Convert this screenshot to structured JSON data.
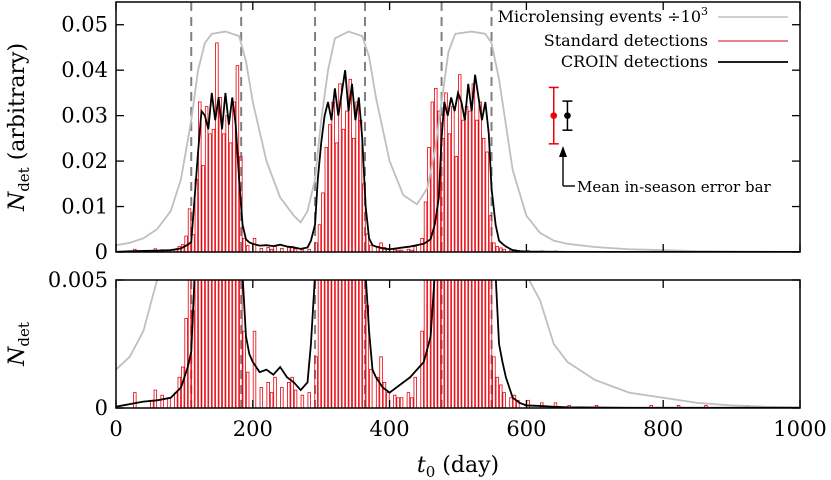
{
  "chart_data": {
    "type": "bar",
    "shared_x": {
      "label": "t",
      "label_sub": "0",
      "label_rest": " (day)",
      "lim": [
        0,
        1000
      ],
      "ticks": [
        0,
        200,
        400,
        600,
        800,
        1000
      ]
    },
    "season_boundaries": [
      110,
      183,
      291,
      364,
      476,
      549
    ],
    "legend": {
      "position": "top-right",
      "entries": [
        {
          "label": "Microlensing events ÷10",
          "sup": "3",
          "series": "events"
        },
        {
          "label": "Standard detections",
          "series": "standard"
        },
        {
          "label": "CROIN detections",
          "series": "croin"
        }
      ]
    },
    "colors": {
      "events": "#bfbfbf",
      "standard": "#e8000b",
      "croin": "#000000",
      "boundary": "#808080"
    },
    "annotation": {
      "text": "Mean in-season error bar",
      "points": [
        {
          "series": "standard",
          "x": 640,
          "y": 0.03,
          "err": 0.0062,
          "color": "#e8000b"
        },
        {
          "series": "croin",
          "x": 660,
          "y": 0.03,
          "err": 0.0032,
          "color": "#000000"
        }
      ]
    },
    "panels": [
      {
        "name": "top",
        "ylabel": "N",
        "ylabel_sub": "det",
        "ylabel_rest": " (arbitrary)",
        "ylim": [
          0,
          0.055
        ],
        "ticks": [
          0,
          0.01,
          0.02,
          0.03,
          0.04,
          0.05
        ],
        "tick_labels": [
          "0",
          "0.01",
          "0.02",
          "0.03",
          "0.04",
          "0.05"
        ]
      },
      {
        "name": "bottom",
        "ylabel": "N",
        "ylabel_sub": "det",
        "ylabel_rest": "",
        "ylim": [
          0,
          0.005
        ],
        "ticks": [
          0,
          0.005
        ],
        "tick_labels": [
          "0",
          "0.005"
        ]
      }
    ],
    "series": [
      {
        "name": "Microlensing events ÷10³",
        "key": "events",
        "type": "line",
        "x": [
          0,
          20,
          40,
          60,
          80,
          95,
          110,
          120,
          130,
          140,
          160,
          180,
          190,
          200,
          220,
          240,
          260,
          270,
          280,
          291,
          300,
          310,
          320,
          340,
          360,
          370,
          380,
          400,
          420,
          440,
          455,
          466,
          476,
          486,
          496,
          520,
          540,
          549,
          560,
          570,
          580,
          600,
          620,
          640,
          660,
          700,
          750,
          800,
          850,
          900,
          950,
          1000
        ],
        "y": [
          0.0015,
          0.002,
          0.003,
          0.005,
          0.009,
          0.016,
          0.029,
          0.04,
          0.046,
          0.048,
          0.0485,
          0.0475,
          0.042,
          0.033,
          0.02,
          0.012,
          0.008,
          0.0065,
          0.009,
          0.016,
          0.029,
          0.04,
          0.047,
          0.0485,
          0.0475,
          0.043,
          0.034,
          0.02,
          0.0125,
          0.0105,
          0.014,
          0.022,
          0.033,
          0.044,
          0.048,
          0.0485,
          0.048,
          0.046,
          0.038,
          0.028,
          0.018,
          0.008,
          0.0042,
          0.0025,
          0.0018,
          0.0011,
          0.0006,
          0.0004,
          0.0002,
          0.0001,
          5e-05,
          2e-05
        ]
      },
      {
        "name": "Standard detections",
        "key": "standard",
        "type": "bar",
        "bin_width": 5,
        "bin_start": [
          25,
          50,
          55,
          65,
          75,
          85,
          90,
          95,
          100,
          105,
          110,
          115,
          120,
          125,
          130,
          135,
          140,
          145,
          150,
          155,
          160,
          165,
          170,
          175,
          180,
          185,
          190,
          200,
          210,
          220,
          225,
          230,
          240,
          250,
          255,
          260,
          270,
          280,
          290,
          295,
          300,
          305,
          310,
          315,
          320,
          325,
          330,
          335,
          340,
          345,
          350,
          355,
          360,
          365,
          370,
          380,
          385,
          390,
          395,
          405,
          410,
          415,
          425,
          430,
          435,
          445,
          450,
          455,
          460,
          465,
          470,
          475,
          480,
          485,
          490,
          495,
          500,
          505,
          510,
          515,
          520,
          525,
          530,
          535,
          540,
          545,
          550,
          555,
          560,
          565,
          575,
          580,
          585,
          600,
          620,
          640,
          660,
          700,
          780,
          820,
          860,
          920
        ],
        "values": [
          0.0006,
          0.0003,
          0.0007,
          0.0005,
          0.0004,
          0.0006,
          0.0012,
          0.0016,
          0.0035,
          0.0095,
          0.0038,
          0.016,
          0.033,
          0.019,
          0.032,
          0.026,
          0.027,
          0.046,
          0.034,
          0.026,
          0.03,
          0.024,
          0.033,
          0.041,
          0.021,
          0.003,
          0.0014,
          0.003,
          0.0008,
          0.001,
          0.0006,
          0.0012,
          0.0008,
          0.001,
          0.0012,
          0.0007,
          0.0005,
          0.0006,
          0.002,
          0.006,
          0.013,
          0.023,
          0.028,
          0.033,
          0.024,
          0.037,
          0.027,
          0.031,
          0.038,
          0.025,
          0.033,
          0.029,
          0.015,
          0.004,
          0.0015,
          0.0012,
          0.002,
          0.001,
          0.0006,
          0.0005,
          0.0004,
          0.0004,
          0.0006,
          0.0004,
          0.0012,
          0.003,
          0.011,
          0.023,
          0.033,
          0.036,
          0.031,
          0.025,
          0.035,
          0.026,
          0.032,
          0.021,
          0.039,
          0.029,
          0.032,
          0.031,
          0.037,
          0.029,
          0.033,
          0.025,
          0.022,
          0.008,
          0.002,
          0.0012,
          0.0009,
          0.0006,
          0.0004,
          0.0005,
          0.0003,
          0.0003,
          0.0002,
          0.0002,
          0.0001,
          0.0001,
          0.0001,
          0.0001,
          0.0001,
          0.0001
        ]
      },
      {
        "name": "CROIN detections",
        "key": "croin",
        "type": "line",
        "x": [
          0,
          20,
          40,
          60,
          80,
          95,
          105,
          110,
          115,
          120,
          125,
          130,
          135,
          140,
          145,
          150,
          155,
          160,
          165,
          170,
          175,
          180,
          185,
          190,
          195,
          200,
          210,
          220,
          230,
          240,
          250,
          260,
          270,
          280,
          285,
          291,
          295,
          300,
          305,
          310,
          315,
          320,
          325,
          330,
          335,
          340,
          345,
          350,
          355,
          360,
          365,
          370,
          375,
          380,
          390,
          400,
          410,
          420,
          430,
          440,
          450,
          460,
          466,
          472,
          476,
          480,
          485,
          490,
          495,
          500,
          505,
          510,
          515,
          520,
          525,
          530,
          535,
          540,
          545,
          549,
          555,
          560,
          565,
          570,
          575,
          580,
          590,
          600,
          620,
          640,
          660,
          700,
          750,
          800,
          900,
          1000
        ],
        "y": [
          5e-05,
          0.00015,
          0.00025,
          0.0003,
          0.0004,
          0.0008,
          0.0016,
          0.0022,
          0.012,
          0.022,
          0.031,
          0.03,
          0.027,
          0.035,
          0.029,
          0.034,
          0.027,
          0.035,
          0.028,
          0.034,
          0.028,
          0.016,
          0.006,
          0.0028,
          0.0021,
          0.0018,
          0.0014,
          0.0015,
          0.0013,
          0.0016,
          0.0012,
          0.001,
          0.0007,
          0.001,
          0.0025,
          0.006,
          0.016,
          0.024,
          0.03,
          0.033,
          0.029,
          0.036,
          0.03,
          0.035,
          0.04,
          0.031,
          0.037,
          0.029,
          0.034,
          0.025,
          0.01,
          0.003,
          0.0015,
          0.0012,
          0.0008,
          0.0006,
          0.0008,
          0.001,
          0.0012,
          0.0015,
          0.0018,
          0.0028,
          0.006,
          0.012,
          0.025,
          0.033,
          0.03,
          0.034,
          0.031,
          0.035,
          0.033,
          0.029,
          0.037,
          0.031,
          0.039,
          0.034,
          0.029,
          0.033,
          0.026,
          0.014,
          0.006,
          0.0025,
          0.0018,
          0.0012,
          0.0008,
          0.0004,
          0.0002,
          0.0001,
          8e-05,
          5e-05,
          3e-05,
          2e-05,
          1e-05,
          1e-05,
          1e-05,
          1e-05
        ]
      }
    ]
  }
}
